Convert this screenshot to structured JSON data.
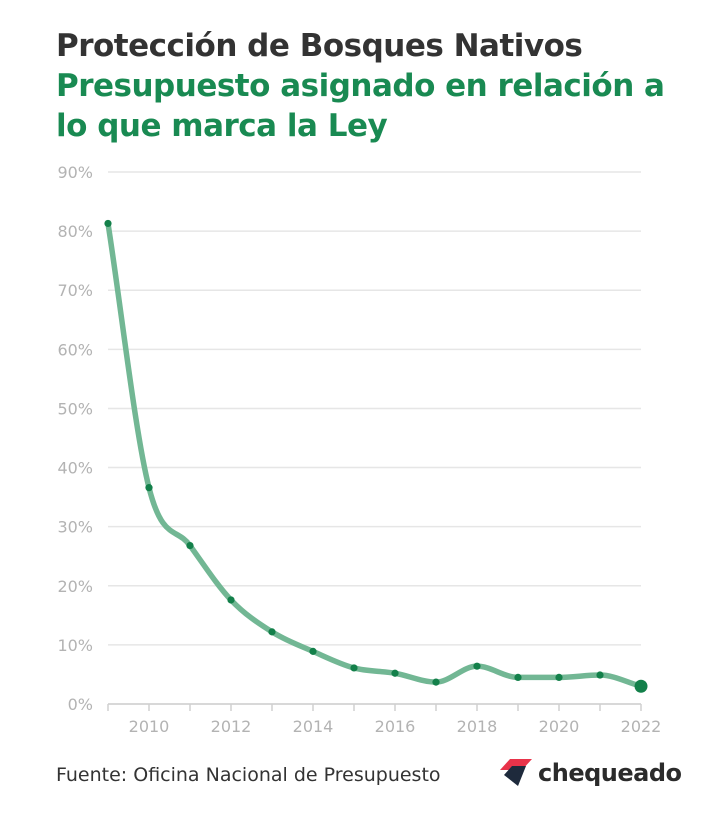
{
  "title": {
    "line1": "Protección de Bosques Nativos",
    "line2": "Presupuesto asignado en relación a lo que marca la Ley"
  },
  "source": "Fuente: Oficina Nacional de Presupuesto",
  "brand": {
    "name": "chequeado",
    "logo_icon": "chequeado-logo-icon",
    "logo_colors": [
      "#e8334a",
      "#1e2a3c"
    ]
  },
  "colors": {
    "line": "#72b794",
    "points": "#13804a",
    "grid": "#e6e6e6",
    "tick_text": "#b3b3b3"
  },
  "chart_data": {
    "type": "line",
    "title": "Protección de Bosques Nativos",
    "subtitle": "Presupuesto asignado en relación a lo que marca la Ley",
    "x": [
      2009,
      2010,
      2011,
      2012,
      2013,
      2014,
      2015,
      2016,
      2017,
      2018,
      2019,
      2020,
      2021,
      2022
    ],
    "series": [
      {
        "values": [
          81.3,
          36.6,
          26.8,
          17.6,
          12.2,
          8.9,
          6.1,
          5.2,
          3.7,
          6.4,
          4.5,
          4.5,
          4.9,
          3.0
        ]
      }
    ],
    "ylim": [
      0,
      90
    ],
    "y_ticks": [
      "0%",
      "10%",
      "20%",
      "30%",
      "40%",
      "50%",
      "60%",
      "70%",
      "80%",
      "90%"
    ],
    "x_ticks": [
      "2010",
      "2012",
      "2014",
      "2016",
      "2018",
      "2020",
      "2022"
    ],
    "y_unit": "%",
    "grid": true,
    "legend": "none",
    "curve": "smooth",
    "last_point_highlighted": true
  }
}
